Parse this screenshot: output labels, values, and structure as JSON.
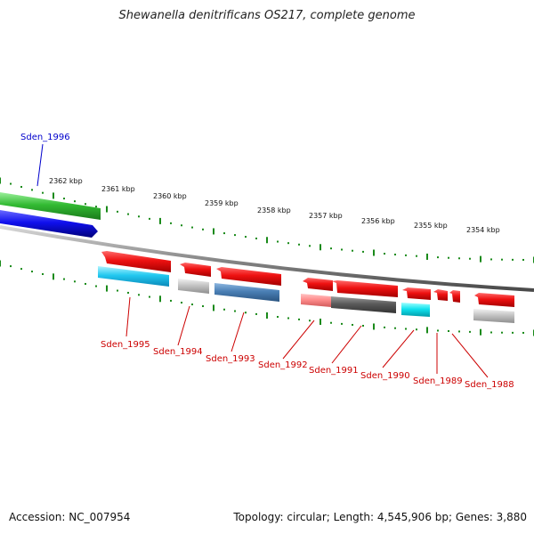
{
  "title": "Shewanella denitrificans OS217, complete genome",
  "accession": "Accession: NC_007954",
  "summary": "Topology: circular; Length: 4,545,906 bp; Genes: 3,880",
  "scale_labels": [
    "2362 kbp",
    "2361 kbp",
    "2360 kbp",
    "2359 kbp",
    "2358 kbp",
    "2357 kbp",
    "2356 kbp",
    "2355 kbp",
    "2354 kbp"
  ],
  "genes": [
    {
      "name": "Sden_1996",
      "color": "#0000cc"
    },
    {
      "name": "Sden_1995",
      "color": "#cc0000"
    },
    {
      "name": "Sden_1994",
      "color": "#cc0000"
    },
    {
      "name": "Sden_1993",
      "color": "#cc0000"
    },
    {
      "name": "Sden_1992",
      "color": "#cc0000"
    },
    {
      "name": "Sden_1991",
      "color": "#cc0000"
    },
    {
      "name": "Sden_1990",
      "color": "#cc0000"
    },
    {
      "name": "Sden_1989",
      "color": "#cc0000"
    },
    {
      "name": "Sden_1988",
      "color": "#cc0000"
    }
  ],
  "colors": {
    "backbone": "#8a8a8a",
    "tick": "#1a8a1a",
    "forward_gene": "#1a8a1a",
    "reverse_gene": "#dd1111",
    "blue_gene": "#1010dd"
  }
}
